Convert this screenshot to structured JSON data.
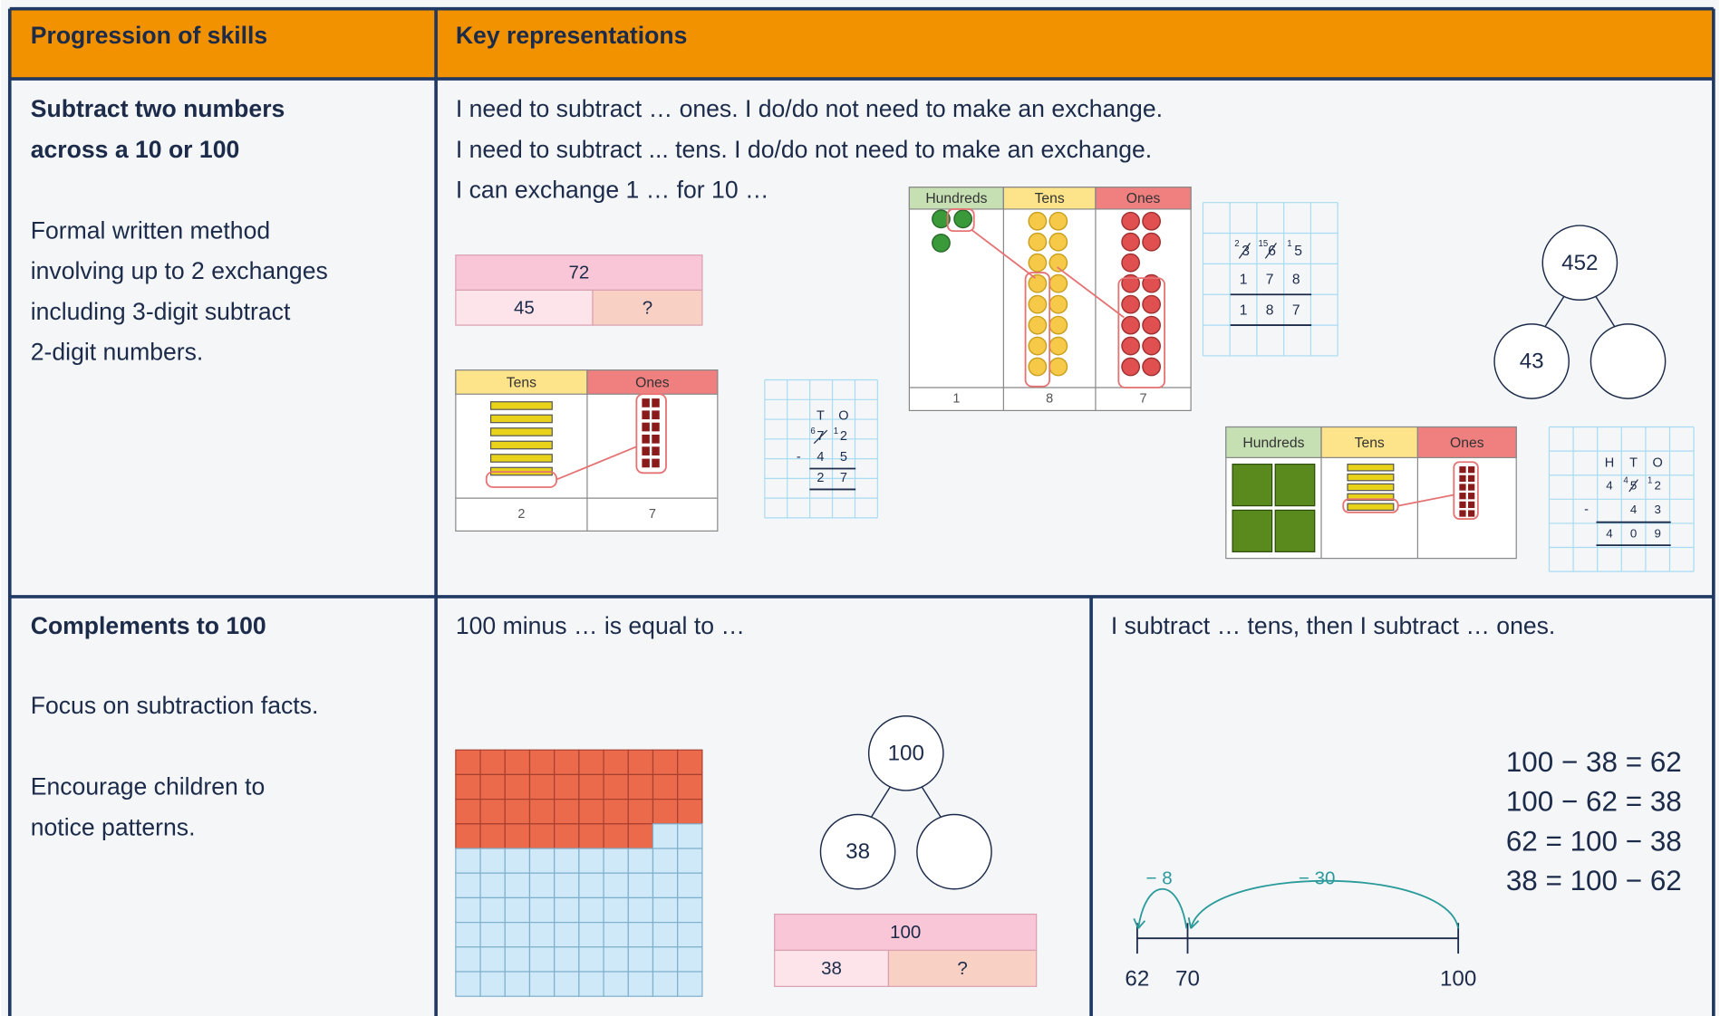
{
  "header": {
    "skills": "Progression of skills",
    "representations": "Key representations"
  },
  "rows": [
    {
      "skill_title": [
        "Subtract two numbers",
        "across a 10 or 100"
      ],
      "description": [
        "Formal written method",
        "involving up to 2 exchanges",
        "including 3-digit subtract",
        "2-digit numbers."
      ],
      "sentences": [
        "I need to subtract … ones. I do/do not need to make an exchange.",
        "I need to subtract ... tens. I do/do not need to make an exchange.",
        "I can exchange 1 … for 10 …"
      ],
      "bar_model": {
        "total": "72",
        "parts": [
          "45",
          "?"
        ]
      },
      "tens_ones_chart": {
        "headers": [
          "Tens",
          "Ones"
        ],
        "totals": [
          "2",
          "7"
        ]
      },
      "column_method_tens": {
        "headers": [
          "T",
          "O"
        ],
        "top": [
          "7",
          "2"
        ],
        "exchanges": [
          "6",
          "1"
        ],
        "operator": "-",
        "subtract": [
          "4",
          "5"
        ],
        "answer": [
          "2",
          "7"
        ]
      },
      "hundreds_chart": {
        "headers": [
          "Hundreds",
          "Tens",
          "Ones"
        ],
        "totals": [
          "1",
          "8",
          "7"
        ]
      },
      "column_method_hundreds": {
        "top": [
          "3",
          "6",
          "5"
        ],
        "exchanges": [
          "2",
          "15",
          "1"
        ],
        "subtract": [
          "1",
          "7",
          "8"
        ],
        "answer": [
          "1",
          "8",
          "7"
        ]
      },
      "part_whole": {
        "whole": "452",
        "parts": [
          "43"
        ]
      },
      "exchange_chart": {
        "headers": [
          "Hundreds",
          "Tens",
          "Ones"
        ]
      },
      "column_method_hto": {
        "headers": [
          "H",
          "T",
          "O"
        ],
        "top": [
          "4",
          "5",
          "2"
        ],
        "exchanges": [
          "4",
          "1"
        ],
        "operator": "-",
        "subtract": [
          "4",
          "3"
        ],
        "answer": [
          "4",
          "0",
          "9"
        ]
      }
    },
    {
      "skill_title": [
        "Complements to 100"
      ],
      "description": [
        "Focus on subtraction facts.",
        "Encourage children to",
        "notice patterns."
      ],
      "sentences": [
        "100 minus … is equal to …"
      ],
      "part_whole": {
        "whole": "100",
        "parts": [
          "38"
        ]
      },
      "bar_model": {
        "total": "100",
        "parts": [
          "38",
          "?"
        ]
      },
      "sentences_right": [
        "I subtract … tens, then I subtract … ones."
      ],
      "equations": [
        "100 − 38 = 62",
        "100 − 62 = 38",
        "62 = 100 − 38",
        "38 = 100 − 62"
      ],
      "number_line": {
        "jumps": [
          "− 8",
          "− 30"
        ],
        "labels": [
          "62",
          "70",
          "100"
        ]
      }
    }
  ]
}
